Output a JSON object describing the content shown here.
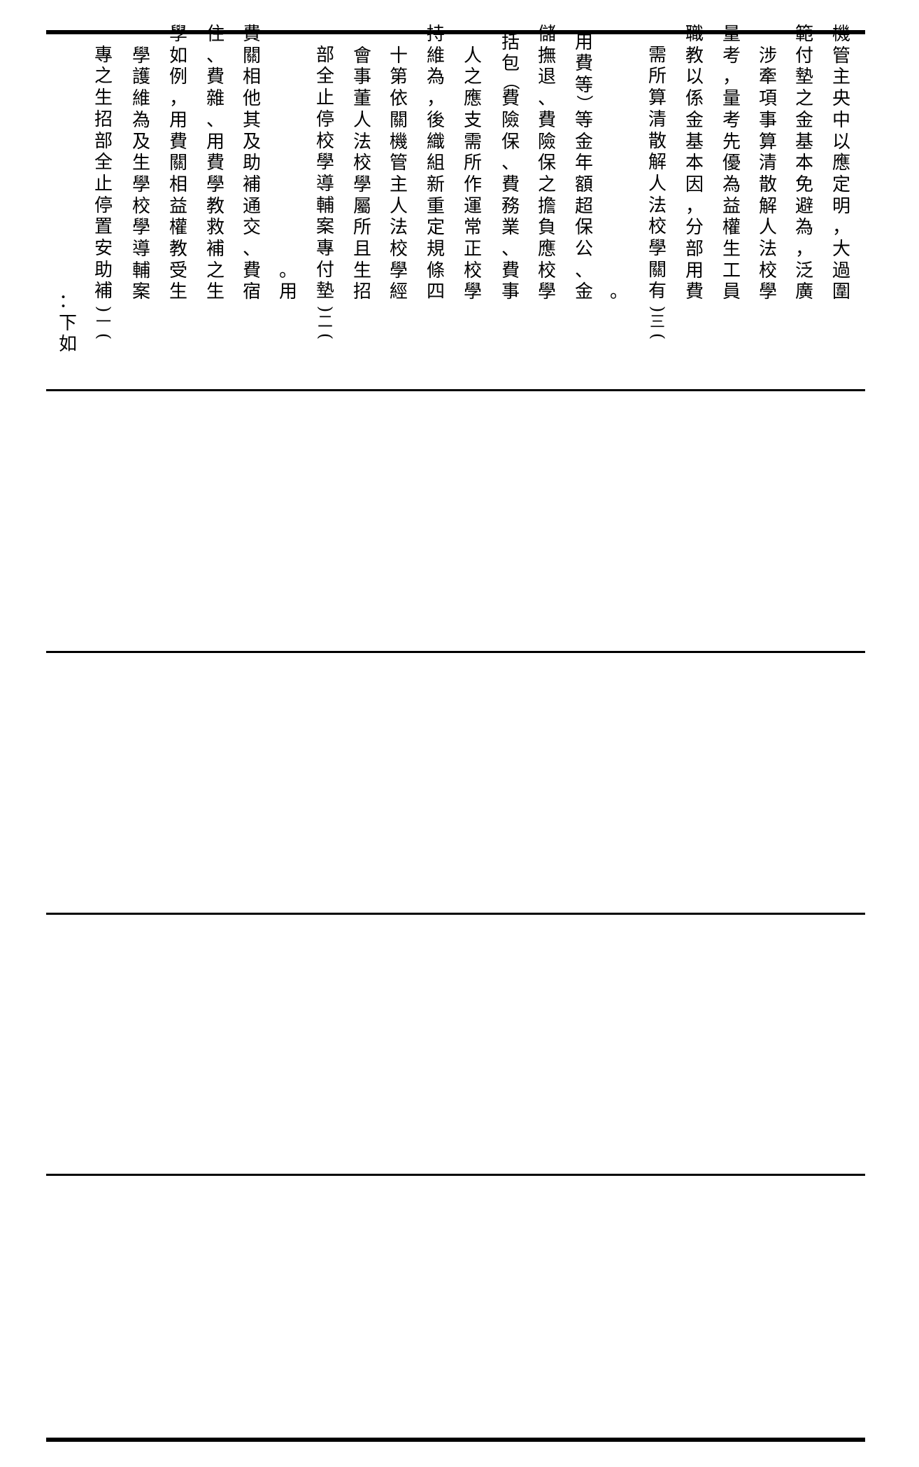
{
  "document": {
    "intro": "如下：",
    "items": [
      {
        "lines": [
          "(一)補助安置停止全部招生之專",
          "案輔導學校學生及為維護學",
          "生受教權益相關費用，例如學",
          "生之補救教學費用、雜費、住",
          "宿費、交通補助及其他相關費",
          "用。"
        ]
      },
      {
        "lines": [
          "(二)墊付專案輔導學校停止全部",
          "招生且所屬學校法人董事會",
          "經學校法人主管機關依第十",
          "四條規定重新組織後，為維持",
          "學校正常運作所需支應之人",
          "事費、業務費、保險費（包括",
          "學校應負擔之保險費、退撫儲",
          "金、公保超額年金等）等費用",
          "。"
        ]
      },
      {
        "lines": [
          "(三)有關學校法人解散清算所需",
          "費用部分，因本基金係以教職",
          "員工生權益為優先考量，考量",
          "學校法人解散清算事項牽涉",
          "廣泛，為避免本基金之墊付範",
          "圍過大，明定應以中央主管機"
        ]
      }
    ]
  }
}
